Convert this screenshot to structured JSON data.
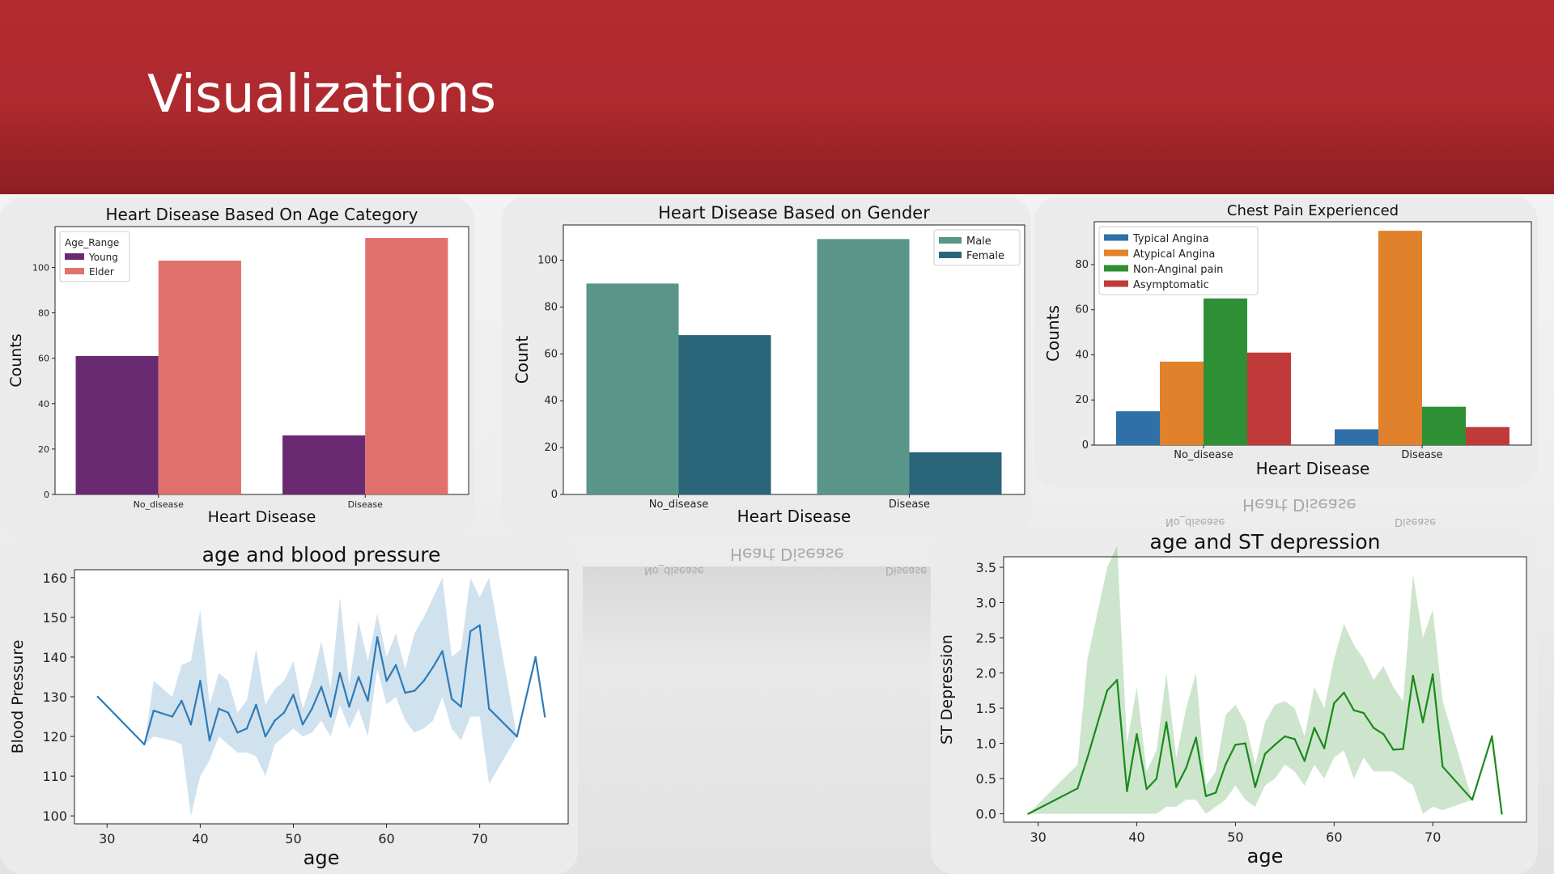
{
  "slide": {
    "title": "Visualizations"
  },
  "colors": {
    "banner": "#b42a31",
    "young": "#6a2a72",
    "elder": "#e0716e",
    "male": "#5a9589",
    "female": "#2a657a",
    "typical": "#2f70a8",
    "atypical": "#e0812b",
    "nonanginal": "#2e8f35",
    "asymptomatic": "#c03a3a",
    "bp_line": "#2e7bb6",
    "st_line": "#1a8a1a"
  },
  "chart_data": [
    {
      "type": "bar",
      "title": "Heart Disease Based On Age Category",
      "xlabel": "Heart Disease",
      "ylabel": "Counts",
      "categories": [
        "No_disease",
        "Disease"
      ],
      "series": [
        {
          "name": "Young",
          "values": [
            61,
            26
          ]
        },
        {
          "name": "Elder",
          "values": [
            103,
            113
          ]
        }
      ],
      "legend_title": "Age_Range",
      "legend_position": "top-left",
      "ylim": [
        0,
        118
      ],
      "yticks": [
        0,
        20,
        40,
        60,
        80,
        100
      ]
    },
    {
      "type": "bar",
      "title": "Heart Disease Based on Gender",
      "xlabel": "Heart Disease",
      "ylabel": "Count",
      "categories": [
        "No_disease",
        "Disease"
      ],
      "series": [
        {
          "name": "Male",
          "values": [
            90,
            109
          ]
        },
        {
          "name": "Female",
          "values": [
            68,
            18
          ]
        }
      ],
      "legend_position": "top-right",
      "ylim": [
        0,
        115
      ],
      "yticks": [
        0,
        20,
        40,
        60,
        80,
        100
      ]
    },
    {
      "type": "bar",
      "title": "Chest Pain Experienced",
      "xlabel": "Heart Disease",
      "ylabel": "Counts",
      "categories": [
        "No_disease",
        "Disease"
      ],
      "series": [
        {
          "name": "Typical Angina",
          "values": [
            15,
            7
          ]
        },
        {
          "name": "Atypical Angina",
          "values": [
            37,
            95
          ]
        },
        {
          "name": "Non-Anginal pain",
          "values": [
            65,
            17
          ]
        },
        {
          "name": "Asymptomatic",
          "values": [
            41,
            8
          ]
        }
      ],
      "legend_position": "top-left",
      "ylim": [
        0,
        99
      ],
      "yticks": [
        0,
        20,
        40,
        60,
        80
      ]
    },
    {
      "type": "line",
      "title": "age and blood pressure",
      "xlabel": "age",
      "ylabel": "Blood Pressure",
      "xlim": [
        26.5,
        79.5
      ],
      "ylim": [
        98,
        162
      ],
      "xticks": [
        30,
        40,
        50,
        60,
        70
      ],
      "yticks": [
        100,
        110,
        120,
        130,
        140,
        150,
        160
      ],
      "x": [
        29,
        34,
        35,
        37,
        38,
        39,
        40,
        41,
        42,
        43,
        44,
        45,
        46,
        47,
        48,
        49,
        50,
        51,
        52,
        53,
        54,
        55,
        56,
        57,
        58,
        59,
        60,
        61,
        62,
        63,
        64,
        65,
        66,
        67,
        68,
        69,
        70,
        71,
        74,
        76,
        77
      ],
      "y": [
        130,
        118,
        126.5,
        125,
        129,
        123,
        134,
        119,
        127,
        126,
        121,
        122,
        128,
        120,
        124,
        126,
        130.5,
        123,
        127,
        132.5,
        125,
        136,
        127.5,
        135,
        129,
        145,
        134,
        138,
        131,
        131.5,
        134,
        137.5,
        141.5,
        129.5,
        127.5,
        146.5,
        148,
        127,
        120,
        140,
        125
      ],
      "ci_low": [
        130,
        118,
        120,
        119,
        118,
        100,
        110,
        114,
        120,
        118,
        116,
        116,
        115,
        110,
        118,
        120,
        122,
        120,
        121,
        124,
        120,
        128,
        122,
        127,
        120,
        137,
        128,
        130,
        124,
        121,
        122,
        124,
        130,
        122,
        119,
        125,
        125,
        108,
        120,
        140,
        125
      ],
      "ci_high": [
        130,
        118,
        134,
        130,
        138,
        139,
        152,
        128,
        136,
        134,
        126,
        129,
        142,
        128,
        132,
        134,
        139,
        127,
        134,
        144,
        132,
        155,
        133,
        149,
        139,
        151,
        140,
        146,
        137,
        146,
        150,
        155,
        160,
        140,
        142,
        160,
        155,
        160,
        120,
        140,
        125
      ]
    },
    {
      "type": "line",
      "title": "age and ST depression",
      "xlabel": "age",
      "ylabel": "ST Depression",
      "xlim": [
        26.5,
        79.5
      ],
      "ylim": [
        -0.12,
        3.65
      ],
      "xticks": [
        30,
        40,
        50,
        60,
        70
      ],
      "yticks": [
        "0.0",
        "0.5",
        "1.0",
        "1.5",
        "2.0",
        "2.5",
        "3.0",
        "3.5"
      ],
      "x": [
        29,
        34,
        35,
        37,
        38,
        39,
        40,
        41,
        42,
        43,
        44,
        45,
        46,
        47,
        48,
        49,
        50,
        51,
        52,
        53,
        54,
        55,
        56,
        57,
        58,
        59,
        60,
        61,
        62,
        63,
        64,
        65,
        66,
        67,
        68,
        69,
        70,
        71,
        74,
        76,
        77
      ],
      "y": [
        0,
        0.36,
        0.8,
        1.75,
        1.9,
        0.32,
        1.13,
        0.35,
        0.5,
        1.3,
        0.38,
        0.65,
        1.08,
        0.25,
        0.3,
        0.7,
        0.98,
        1.0,
        0.38,
        0.85,
        0.98,
        1.1,
        1.06,
        0.75,
        1.22,
        0.93,
        1.57,
        1.72,
        1.47,
        1.43,
        1.22,
        1.13,
        0.91,
        0.92,
        1.96,
        1.3,
        1.98,
        0.67,
        0.2,
        1.1,
        0
      ],
      "ci_low": [
        0,
        0,
        0,
        0,
        0,
        0,
        0,
        0,
        0,
        0.1,
        0.1,
        0.2,
        0.2,
        0,
        0.1,
        0.2,
        0.4,
        0.2,
        0.1,
        0.4,
        0.5,
        0.7,
        0.6,
        0.4,
        0.7,
        0.5,
        0.8,
        0.9,
        0.5,
        0.8,
        0.6,
        0.6,
        0.6,
        0.5,
        0.4,
        0,
        0.1,
        0.05,
        0.2,
        1.1,
        0
      ],
      "ci_high": [
        0,
        0.7,
        2.2,
        3.5,
        3.8,
        1.0,
        1.8,
        0.6,
        0.9,
        2.0,
        0.8,
        1.5,
        2.0,
        0.4,
        0.6,
        1.4,
        1.55,
        1.3,
        0.7,
        1.3,
        1.55,
        1.6,
        1.5,
        1.1,
        1.8,
        1.5,
        2.2,
        2.7,
        2.4,
        2.2,
        1.9,
        2.1,
        1.8,
        1.6,
        3.4,
        2.5,
        2.9,
        1.6,
        0.2,
        1.1,
        0
      ]
    }
  ],
  "reflection": {
    "chart3_xlabel": "Heart Disease",
    "chart3_no": "No_disease",
    "chart3_yes": "Disease",
    "chart2_xlabel": "Heart Disease",
    "chart2_no": "No_disease",
    "chart2_yes": "Disease"
  }
}
